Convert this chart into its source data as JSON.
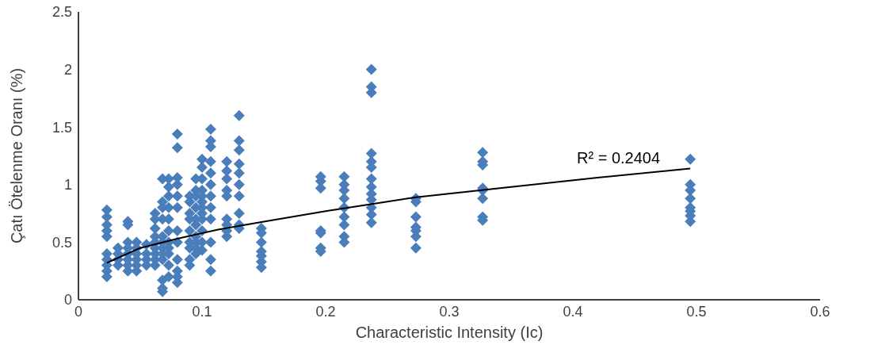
{
  "chart_data": {
    "type": "scatter",
    "xlabel": "Characteristic Intensity (Ic)",
    "ylabel": "Çatı Ötelenme Oranı (%)",
    "xlim": [
      0,
      0.6
    ],
    "xticks": [
      0,
      0.1,
      0.2,
      0.3,
      0.4,
      0.5,
      0.6
    ],
    "ylim": [
      0,
      2.5
    ],
    "yticks": [
      0,
      0.5,
      1,
      1.5,
      2,
      2.5
    ],
    "annotations": [
      "R² = 0.2404"
    ],
    "series": [
      {
        "marker": "diamond",
        "color": "#4a7ebb",
        "x": [
          0.023,
          0.023,
          0.023,
          0.023,
          0.023,
          0.023,
          0.023,
          0.023,
          0.023,
          0.023,
          0.032,
          0.032,
          0.032,
          0.032,
          0.04,
          0.04,
          0.04,
          0.04,
          0.04,
          0.04,
          0.04,
          0.04,
          0.047,
          0.047,
          0.047,
          0.047,
          0.047,
          0.047,
          0.055,
          0.055,
          0.055,
          0.055,
          0.062,
          0.062,
          0.062,
          0.062,
          0.062,
          0.062,
          0.062,
          0.062,
          0.062,
          0.068,
          0.068,
          0.068,
          0.068,
          0.068,
          0.068,
          0.068,
          0.068,
          0.068,
          0.068,
          0.068,
          0.068,
          0.073,
          0.073,
          0.073,
          0.073,
          0.073,
          0.073,
          0.073,
          0.073,
          0.073,
          0.073,
          0.073,
          0.08,
          0.08,
          0.08,
          0.08,
          0.08,
          0.08,
          0.08,
          0.08,
          0.08,
          0.08,
          0.08,
          0.08,
          0.09,
          0.09,
          0.09,
          0.09,
          0.09,
          0.09,
          0.09,
          0.09,
          0.09,
          0.095,
          0.095,
          0.095,
          0.095,
          0.095,
          0.095,
          0.095,
          0.095,
          0.095,
          0.095,
          0.1,
          0.1,
          0.1,
          0.1,
          0.1,
          0.1,
          0.1,
          0.1,
          0.1,
          0.1,
          0.1,
          0.1,
          0.107,
          0.107,
          0.107,
          0.107,
          0.107,
          0.107,
          0.107,
          0.107,
          0.107,
          0.107,
          0.107,
          0.107,
          0.12,
          0.12,
          0.12,
          0.12,
          0.12,
          0.12,
          0.12,
          0.12,
          0.12,
          0.13,
          0.13,
          0.13,
          0.13,
          0.13,
          0.13,
          0.13,
          0.13,
          0.13,
          0.13,
          0.148,
          0.148,
          0.148,
          0.148,
          0.148,
          0.148,
          0.148,
          0.196,
          0.196,
          0.196,
          0.196,
          0.196,
          0.196,
          0.196,
          0.215,
          0.215,
          0.215,
          0.215,
          0.215,
          0.215,
          0.215,
          0.215,
          0.215,
          0.237,
          0.237,
          0.237,
          0.237,
          0.237,
          0.237,
          0.237,
          0.237,
          0.237,
          0.237,
          0.237,
          0.237,
          0.237,
          0.273,
          0.273,
          0.273,
          0.273,
          0.273,
          0.273,
          0.273,
          0.327,
          0.327,
          0.327,
          0.327,
          0.327,
          0.327,
          0.327,
          0.327,
          0.495,
          0.495,
          0.495,
          0.495,
          0.495,
          0.495,
          0.495,
          0.495
        ],
        "values": [
          0.78,
          0.72,
          0.65,
          0.6,
          0.55,
          0.4,
          0.35,
          0.3,
          0.25,
          0.2,
          0.45,
          0.4,
          0.35,
          0.3,
          0.68,
          0.65,
          0.5,
          0.45,
          0.4,
          0.35,
          0.3,
          0.25,
          0.5,
          0.45,
          0.4,
          0.35,
          0.3,
          0.25,
          0.48,
          0.4,
          0.35,
          0.3,
          0.75,
          0.7,
          0.62,
          0.55,
          0.5,
          0.45,
          0.4,
          0.35,
          0.3,
          1.05,
          0.85,
          0.8,
          0.7,
          0.55,
          0.5,
          0.45,
          0.4,
          0.35,
          0.17,
          0.1,
          0.07,
          1.05,
          0.98,
          0.9,
          0.8,
          0.7,
          0.6,
          0.5,
          0.45,
          0.4,
          0.3,
          0.2,
          1.44,
          1.32,
          1.06,
          1.0,
          0.9,
          0.8,
          0.6,
          0.5,
          0.35,
          0.25,
          0.2,
          0.15,
          0.9,
          0.85,
          0.75,
          0.7,
          0.6,
          0.5,
          0.45,
          0.35,
          0.3,
          1.05,
          0.95,
          0.9,
          0.8,
          0.7,
          0.65,
          0.55,
          0.5,
          0.45,
          0.4,
          1.22,
          1.15,
          1.05,
          0.95,
          0.9,
          0.85,
          0.8,
          0.75,
          0.7,
          0.6,
          0.5,
          0.43,
          1.48,
          1.38,
          1.33,
          1.2,
          1.1,
          1.0,
          0.9,
          0.8,
          0.7,
          0.5,
          0.35,
          0.25,
          1.2,
          1.12,
          1.05,
          0.95,
          0.9,
          0.7,
          0.65,
          0.6,
          0.55,
          1.6,
          1.38,
          1.3,
          1.18,
          1.1,
          1.0,
          0.9,
          0.75,
          0.65,
          0.62,
          0.62,
          0.58,
          0.5,
          0.42,
          0.38,
          0.33,
          0.28,
          1.07,
          1.03,
          0.97,
          0.6,
          0.58,
          0.45,
          0.42,
          1.07,
          1.0,
          0.95,
          0.88,
          0.8,
          0.72,
          0.65,
          0.55,
          0.5,
          2.0,
          1.85,
          1.8,
          1.27,
          1.2,
          1.15,
          1.05,
          0.98,
          0.92,
          0.87,
          0.8,
          0.74,
          0.67,
          0.88,
          0.85,
          0.72,
          0.63,
          0.6,
          0.55,
          0.45,
          1.28,
          1.2,
          1.17,
          0.97,
          0.95,
          0.88,
          0.72,
          0.69,
          1.22,
          1.0,
          0.95,
          0.88,
          0.8,
          0.77,
          0.73,
          0.68
        ]
      },
      {
        "type": "line",
        "color": "#000000",
        "x": [
          0.023,
          0.05,
          0.08,
          0.113,
          0.148,
          0.2,
          0.273,
          0.35,
          0.42,
          0.495
        ],
        "values": [
          0.32,
          0.45,
          0.53,
          0.61,
          0.675,
          0.77,
          0.89,
          0.98,
          1.06,
          1.14
        ]
      }
    ]
  }
}
